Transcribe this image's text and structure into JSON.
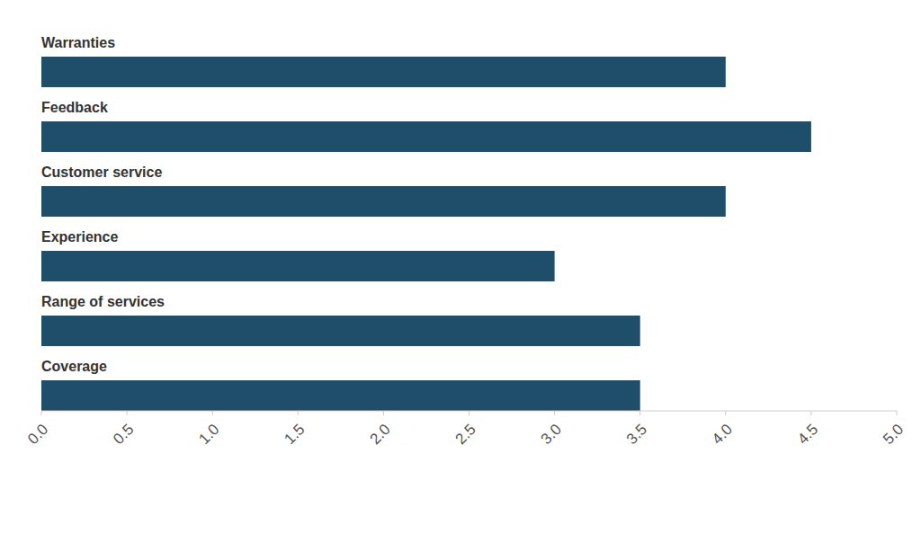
{
  "chart_data": {
    "type": "bar",
    "orientation": "horizontal",
    "categories": [
      "Warranties",
      "Feedback",
      "Customer service",
      "Experience",
      "Range of services",
      "Coverage"
    ],
    "values": [
      4.0,
      4.5,
      4.0,
      3.0,
      3.5,
      3.5
    ],
    "color": "#1f4e6b",
    "xlim": [
      0,
      5
    ],
    "xticks": [
      {
        "value": 0,
        "label": "0.0"
      },
      0.5,
      {
        "value": 1,
        "label": "1.0"
      },
      1.5,
      {
        "value": 2,
        "label": "2.0"
      },
      2.5,
      {
        "value": 3,
        "label": "3.0"
      },
      3.5,
      {
        "value": 4,
        "label": "4.0"
      },
      4.5,
      {
        "value": 5,
        "label": "5.0"
      }
    ],
    "grid": false
  }
}
